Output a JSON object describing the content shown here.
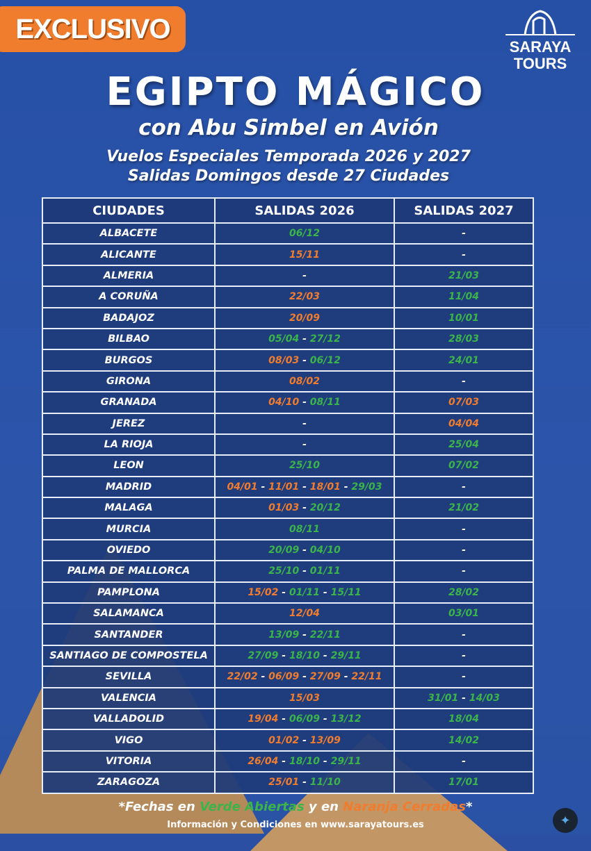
{
  "badge": "EXCLUSIVO",
  "logo": {
    "line1": "SARAYA",
    "line2": "TOURS"
  },
  "title": "EGIPTO MÁGICO",
  "subtitle": "con Abu Simbel en Avión",
  "tagline1": "Vuelos Especiales Temporada 2026 y 2027",
  "tagline2": "Salidas Domingos desde 27 Ciudades",
  "colors": {
    "open": "#3bb44a",
    "closed": "#f07d2e",
    "background": "#2a4fa3",
    "badge": "#f07d2e"
  },
  "table": {
    "headers": [
      "CIUDADES",
      "SALIDAS 2026",
      "SALIDAS 2027"
    ],
    "rows": [
      {
        "city": "ALBACETE",
        "s2026": [
          {
            "d": "06/12",
            "s": "open"
          }
        ],
        "s2027": []
      },
      {
        "city": "ALICANTE",
        "s2026": [
          {
            "d": "15/11",
            "s": "closed"
          }
        ],
        "s2027": []
      },
      {
        "city": "ALMERIA",
        "s2026": [],
        "s2027": [
          {
            "d": "21/03",
            "s": "open"
          }
        ]
      },
      {
        "city": "A CORUÑA",
        "s2026": [
          {
            "d": "22/03",
            "s": "closed"
          }
        ],
        "s2027": [
          {
            "d": "11/04",
            "s": "open"
          }
        ]
      },
      {
        "city": "BADAJOZ",
        "s2026": [
          {
            "d": "20/09",
            "s": "closed"
          }
        ],
        "s2027": [
          {
            "d": "10/01",
            "s": "open"
          }
        ]
      },
      {
        "city": "BILBAO",
        "s2026": [
          {
            "d": "05/04",
            "s": "open"
          },
          {
            "d": "27/12",
            "s": "open"
          }
        ],
        "s2027": [
          {
            "d": "28/03",
            "s": "open"
          }
        ]
      },
      {
        "city": "BURGOS",
        "s2026": [
          {
            "d": "08/03",
            "s": "closed"
          },
          {
            "d": "06/12",
            "s": "open"
          }
        ],
        "s2027": [
          {
            "d": "24/01",
            "s": "open"
          }
        ]
      },
      {
        "city": "GIRONA",
        "s2026": [
          {
            "d": "08/02",
            "s": "closed"
          }
        ],
        "s2027": []
      },
      {
        "city": "GRANADA",
        "s2026": [
          {
            "d": "04/10",
            "s": "closed"
          },
          {
            "d": "08/11",
            "s": "open"
          }
        ],
        "s2027": [
          {
            "d": "07/03",
            "s": "closed"
          }
        ]
      },
      {
        "city": "JEREZ",
        "s2026": [],
        "s2027": [
          {
            "d": "04/04",
            "s": "closed"
          }
        ]
      },
      {
        "city": "LA RIOJA",
        "s2026": [],
        "s2027": [
          {
            "d": "25/04",
            "s": "open"
          }
        ]
      },
      {
        "city": "LEON",
        "s2026": [
          {
            "d": "25/10",
            "s": "open"
          }
        ],
        "s2027": [
          {
            "d": "07/02",
            "s": "open"
          }
        ]
      },
      {
        "city": "MADRID",
        "s2026": [
          {
            "d": "04/01",
            "s": "closed"
          },
          {
            "d": "11/01",
            "s": "closed"
          },
          {
            "d": "18/01",
            "s": "closed"
          },
          {
            "d": "29/03",
            "s": "open"
          }
        ],
        "s2027": []
      },
      {
        "city": "MALAGA",
        "s2026": [
          {
            "d": "01/03",
            "s": "closed"
          },
          {
            "d": "20/12",
            "s": "open"
          }
        ],
        "s2027": [
          {
            "d": "21/02",
            "s": "open"
          }
        ]
      },
      {
        "city": "MURCIA",
        "s2026": [
          {
            "d": "08/11",
            "s": "open"
          }
        ],
        "s2027": []
      },
      {
        "city": "OVIEDO",
        "s2026": [
          {
            "d": "20/09",
            "s": "open"
          },
          {
            "d": "04/10",
            "s": "open"
          }
        ],
        "s2027": []
      },
      {
        "city": "PALMA DE  MALLORCA",
        "s2026": [
          {
            "d": "25/10",
            "s": "open"
          },
          {
            "d": "01/11",
            "s": "open"
          }
        ],
        "s2027": []
      },
      {
        "city": "PAMPLONA",
        "s2026": [
          {
            "d": "15/02",
            "s": "closed"
          },
          {
            "d": "01/11",
            "s": "open"
          },
          {
            "d": "15/11",
            "s": "open"
          }
        ],
        "s2027": [
          {
            "d": "28/02",
            "s": "open"
          }
        ]
      },
      {
        "city": "SALAMANCA",
        "s2026": [
          {
            "d": "12/04",
            "s": "closed"
          }
        ],
        "s2027": [
          {
            "d": "03/01",
            "s": "open"
          }
        ]
      },
      {
        "city": "SANTANDER",
        "s2026": [
          {
            "d": "13/09",
            "s": "open"
          },
          {
            "d": "22/11",
            "s": "open"
          }
        ],
        "s2027": []
      },
      {
        "city": "SANTIAGO DE COMPOSTELA",
        "s2026": [
          {
            "d": "27/09",
            "s": "open"
          },
          {
            "d": "18/10",
            "s": "open"
          },
          {
            "d": "29/11",
            "s": "open"
          }
        ],
        "s2027": []
      },
      {
        "city": "SEVILLA",
        "s2026": [
          {
            "d": "22/02",
            "s": "closed"
          },
          {
            "d": "06/09",
            "s": "closed"
          },
          {
            "d": "27/09",
            "s": "closed"
          },
          {
            "d": "22/11",
            "s": "closed"
          }
        ],
        "s2027": []
      },
      {
        "city": "VALENCIA",
        "s2026": [
          {
            "d": "15/03",
            "s": "closed"
          }
        ],
        "s2027": [
          {
            "d": "31/01",
            "s": "open"
          },
          {
            "d": "14/03",
            "s": "open"
          }
        ]
      },
      {
        "city": "VALLADOLID",
        "s2026": [
          {
            "d": "19/04",
            "s": "closed"
          },
          {
            "d": "06/09",
            "s": "open"
          },
          {
            "d": "13/12",
            "s": "open"
          }
        ],
        "s2027": [
          {
            "d": "18/04",
            "s": "open"
          }
        ]
      },
      {
        "city": "VIGO",
        "s2026": [
          {
            "d": "01/02",
            "s": "closed"
          },
          {
            "d": "13/09",
            "s": "closed"
          }
        ],
        "s2027": [
          {
            "d": "14/02",
            "s": "open"
          }
        ]
      },
      {
        "city": "VITORIA",
        "s2026": [
          {
            "d": "26/04",
            "s": "closed"
          },
          {
            "d": "18/10",
            "s": "open"
          },
          {
            "d": "29/11",
            "s": "open"
          }
        ],
        "s2027": []
      },
      {
        "city": "ZARAGOZA",
        "s2026": [
          {
            "d": "25/01",
            "s": "closed"
          },
          {
            "d": "11/10",
            "s": "open"
          }
        ],
        "s2027": [
          {
            "d": "17/01",
            "s": "open"
          }
        ]
      }
    ]
  },
  "footer": {
    "part1": "*Fechas en ",
    "green": "Verde Abiertas",
    "part2": " y en ",
    "orange": "Naranja Cerradas",
    "part3": "*",
    "info": "Información y Condiciones en www.sarayatours.es"
  },
  "empty": "-",
  "separator": " - "
}
